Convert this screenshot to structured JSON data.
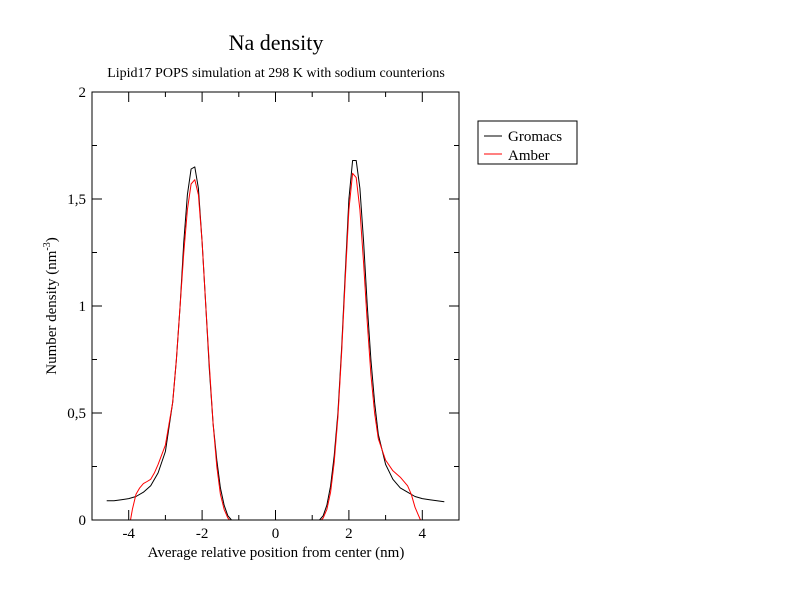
{
  "chart_data": {
    "type": "line",
    "title": "Na density",
    "subtitle": "Lipid17 POPS simulation at 298 K with sodium counterions",
    "xlabel": "Average relative position from center (nm)",
    "ylabel": "Number density (nm",
    "ylabel_sup": "-3",
    "ylabel_tail": ")",
    "xlim": [
      -5,
      5
    ],
    "ylim": [
      0,
      2
    ],
    "x_ticks": [
      {
        "v": -4,
        "label": "-4"
      },
      {
        "v": -2,
        "label": "-2"
      },
      {
        "v": 0,
        "label": "0"
      },
      {
        "v": 2,
        "label": "2"
      },
      {
        "v": 4,
        "label": "4"
      }
    ],
    "y_ticks": [
      {
        "v": 0,
        "label": "0"
      },
      {
        "v": 0.5,
        "label": "0,5"
      },
      {
        "v": 1,
        "label": "1"
      },
      {
        "v": 1.5,
        "label": "1,5"
      },
      {
        "v": 2,
        "label": "2"
      }
    ],
    "grid": false,
    "legend_position": "outside-top-right",
    "series": [
      {
        "name": "Gromacs",
        "color": "#000000",
        "x": [
          -4.6,
          -4.4,
          -4.2,
          -4.0,
          -3.8,
          -3.6,
          -3.4,
          -3.2,
          -3.0,
          -2.8,
          -2.7,
          -2.6,
          -2.5,
          -2.4,
          -2.3,
          -2.2,
          -2.1,
          -2.0,
          -1.9,
          -1.8,
          -1.7,
          -1.6,
          -1.5,
          -1.4,
          -1.3,
          -1.2,
          1.2,
          1.3,
          1.4,
          1.5,
          1.6,
          1.7,
          1.8,
          1.9,
          2.0,
          2.1,
          2.2,
          2.3,
          2.4,
          2.5,
          2.6,
          2.7,
          2.8,
          3.0,
          3.2,
          3.4,
          3.6,
          3.8,
          4.0,
          4.2,
          4.4,
          4.6
        ],
        "y": [
          0.09,
          0.09,
          0.095,
          0.1,
          0.11,
          0.13,
          0.16,
          0.22,
          0.32,
          0.55,
          0.75,
          1.0,
          1.3,
          1.52,
          1.64,
          1.65,
          1.55,
          1.3,
          1.0,
          0.7,
          0.45,
          0.28,
          0.15,
          0.07,
          0.02,
          0.0,
          0.0,
          0.02,
          0.07,
          0.16,
          0.3,
          0.5,
          0.8,
          1.15,
          1.5,
          1.68,
          1.68,
          1.55,
          1.3,
          1.0,
          0.75,
          0.55,
          0.4,
          0.26,
          0.19,
          0.15,
          0.13,
          0.11,
          0.1,
          0.095,
          0.09,
          0.085
        ]
      },
      {
        "name": "Amber",
        "color": "#ff0000",
        "x": [
          -3.95,
          -3.9,
          -3.8,
          -3.7,
          -3.6,
          -3.5,
          -3.4,
          -3.3,
          -3.2,
          -3.0,
          -2.8,
          -2.7,
          -2.6,
          -2.5,
          -2.4,
          -2.3,
          -2.2,
          -2.1,
          -2.0,
          -1.9,
          -1.8,
          -1.7,
          -1.6,
          -1.5,
          -1.4,
          -1.3,
          -1.25,
          1.25,
          1.3,
          1.4,
          1.5,
          1.6,
          1.7,
          1.8,
          1.9,
          2.0,
          2.1,
          2.2,
          2.3,
          2.4,
          2.5,
          2.6,
          2.7,
          2.8,
          3.0,
          3.2,
          3.4,
          3.6,
          3.7,
          3.8,
          3.9,
          3.95
        ],
        "y": [
          0.0,
          0.05,
          0.12,
          0.15,
          0.17,
          0.18,
          0.19,
          0.22,
          0.26,
          0.35,
          0.55,
          0.75,
          1.0,
          1.25,
          1.45,
          1.57,
          1.59,
          1.52,
          1.3,
          1.0,
          0.72,
          0.45,
          0.25,
          0.12,
          0.05,
          0.01,
          0.0,
          0.0,
          0.01,
          0.05,
          0.13,
          0.27,
          0.48,
          0.78,
          1.12,
          1.45,
          1.62,
          1.6,
          1.45,
          1.2,
          0.92,
          0.68,
          0.5,
          0.38,
          0.28,
          0.23,
          0.2,
          0.16,
          0.12,
          0.06,
          0.02,
          0.0
        ]
      }
    ]
  }
}
